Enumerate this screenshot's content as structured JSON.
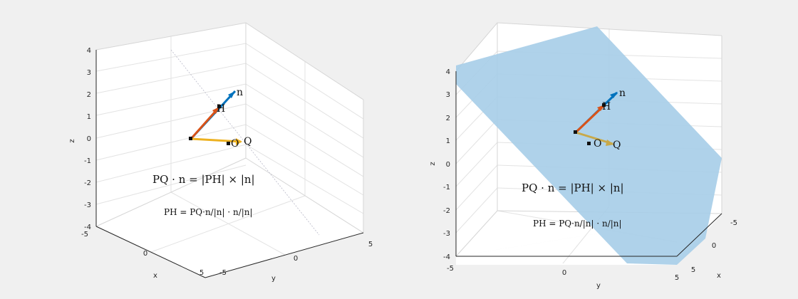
{
  "chart_data": [
    {
      "type": "3d-line",
      "xlabel": "x",
      "ylabel": "y",
      "zlabel": "z",
      "xlim": [
        -5,
        5
      ],
      "ylim": [
        -5,
        5
      ],
      "zlim": [
        -4,
        4
      ],
      "xticks": [
        "-5",
        "0",
        "5"
      ],
      "yticks": [
        "-5",
        "0",
        "5"
      ],
      "zticks": [
        "-4",
        "-3",
        "-2",
        "-1",
        "0",
        "1",
        "2",
        "3",
        "4"
      ],
      "grid": true,
      "points": [
        {
          "name": "P",
          "label": "",
          "x": 0.5,
          "y": -2.5,
          "z": 0
        },
        {
          "name": "O",
          "label": "O",
          "x": 0,
          "y": 0,
          "z": 0
        },
        {
          "name": "Q",
          "label": "Q",
          "x": 0.5,
          "y": 0.5,
          "z": 0
        },
        {
          "name": "H",
          "label": "H",
          "x": 0.5,
          "y": -1.5,
          "z": 1.5
        },
        {
          "name": "n",
          "label": "n",
          "x": 0.5,
          "y": -1.0,
          "z": 2.2
        }
      ],
      "vectors": [
        {
          "from": "P",
          "to": "n",
          "color": "#0072bd"
        },
        {
          "from": "P",
          "to": "H",
          "color": "#d95319"
        },
        {
          "from": "P",
          "to": "Q",
          "color": "#edb120"
        }
      ],
      "equation1": "PQ · n = |PH| × |n|",
      "equation2": "PH = PQ·n/|n| · n/|n|"
    },
    {
      "type": "3d-line",
      "xlabel": "x",
      "ylabel": "y",
      "zlabel": "z",
      "xlim": [
        -5,
        5
      ],
      "ylim": [
        -5,
        5
      ],
      "zlim": [
        -4,
        4
      ],
      "xticks": [
        "-5",
        "0",
        "5"
      ],
      "yticks": [
        "-5",
        "0",
        "5"
      ],
      "zticks": [
        "-4",
        "-3",
        "-2",
        "-1",
        "0",
        "1",
        "2",
        "3",
        "4"
      ],
      "grid": true,
      "plane_color": "#a6cde8",
      "points": [
        {
          "name": "P",
          "label": "",
          "x": 0.5,
          "y": -1,
          "z": 1.3
        },
        {
          "name": "O",
          "label": "O",
          "x": 0,
          "y": 0,
          "z": 0
        },
        {
          "name": "Q",
          "label": "Q",
          "x": 0.5,
          "y": 1.5,
          "z": 0.5
        },
        {
          "name": "H",
          "label": "H",
          "x": 0.5,
          "y": 0,
          "z": 2.3
        },
        {
          "name": "n",
          "label": "n",
          "x": 0.5,
          "y": 0.6,
          "z": 3.1
        }
      ],
      "vectors": [
        {
          "from": "P",
          "to": "n",
          "color": "#0072bd"
        },
        {
          "from": "P",
          "to": "H",
          "color": "#d95319"
        },
        {
          "from": "P",
          "to": "Q",
          "color": "#c8a94a"
        }
      ],
      "equation1": "PQ · n = |PH| × |n|",
      "equation2": "PH = PQ·n/|n| · n/|n|"
    }
  ]
}
